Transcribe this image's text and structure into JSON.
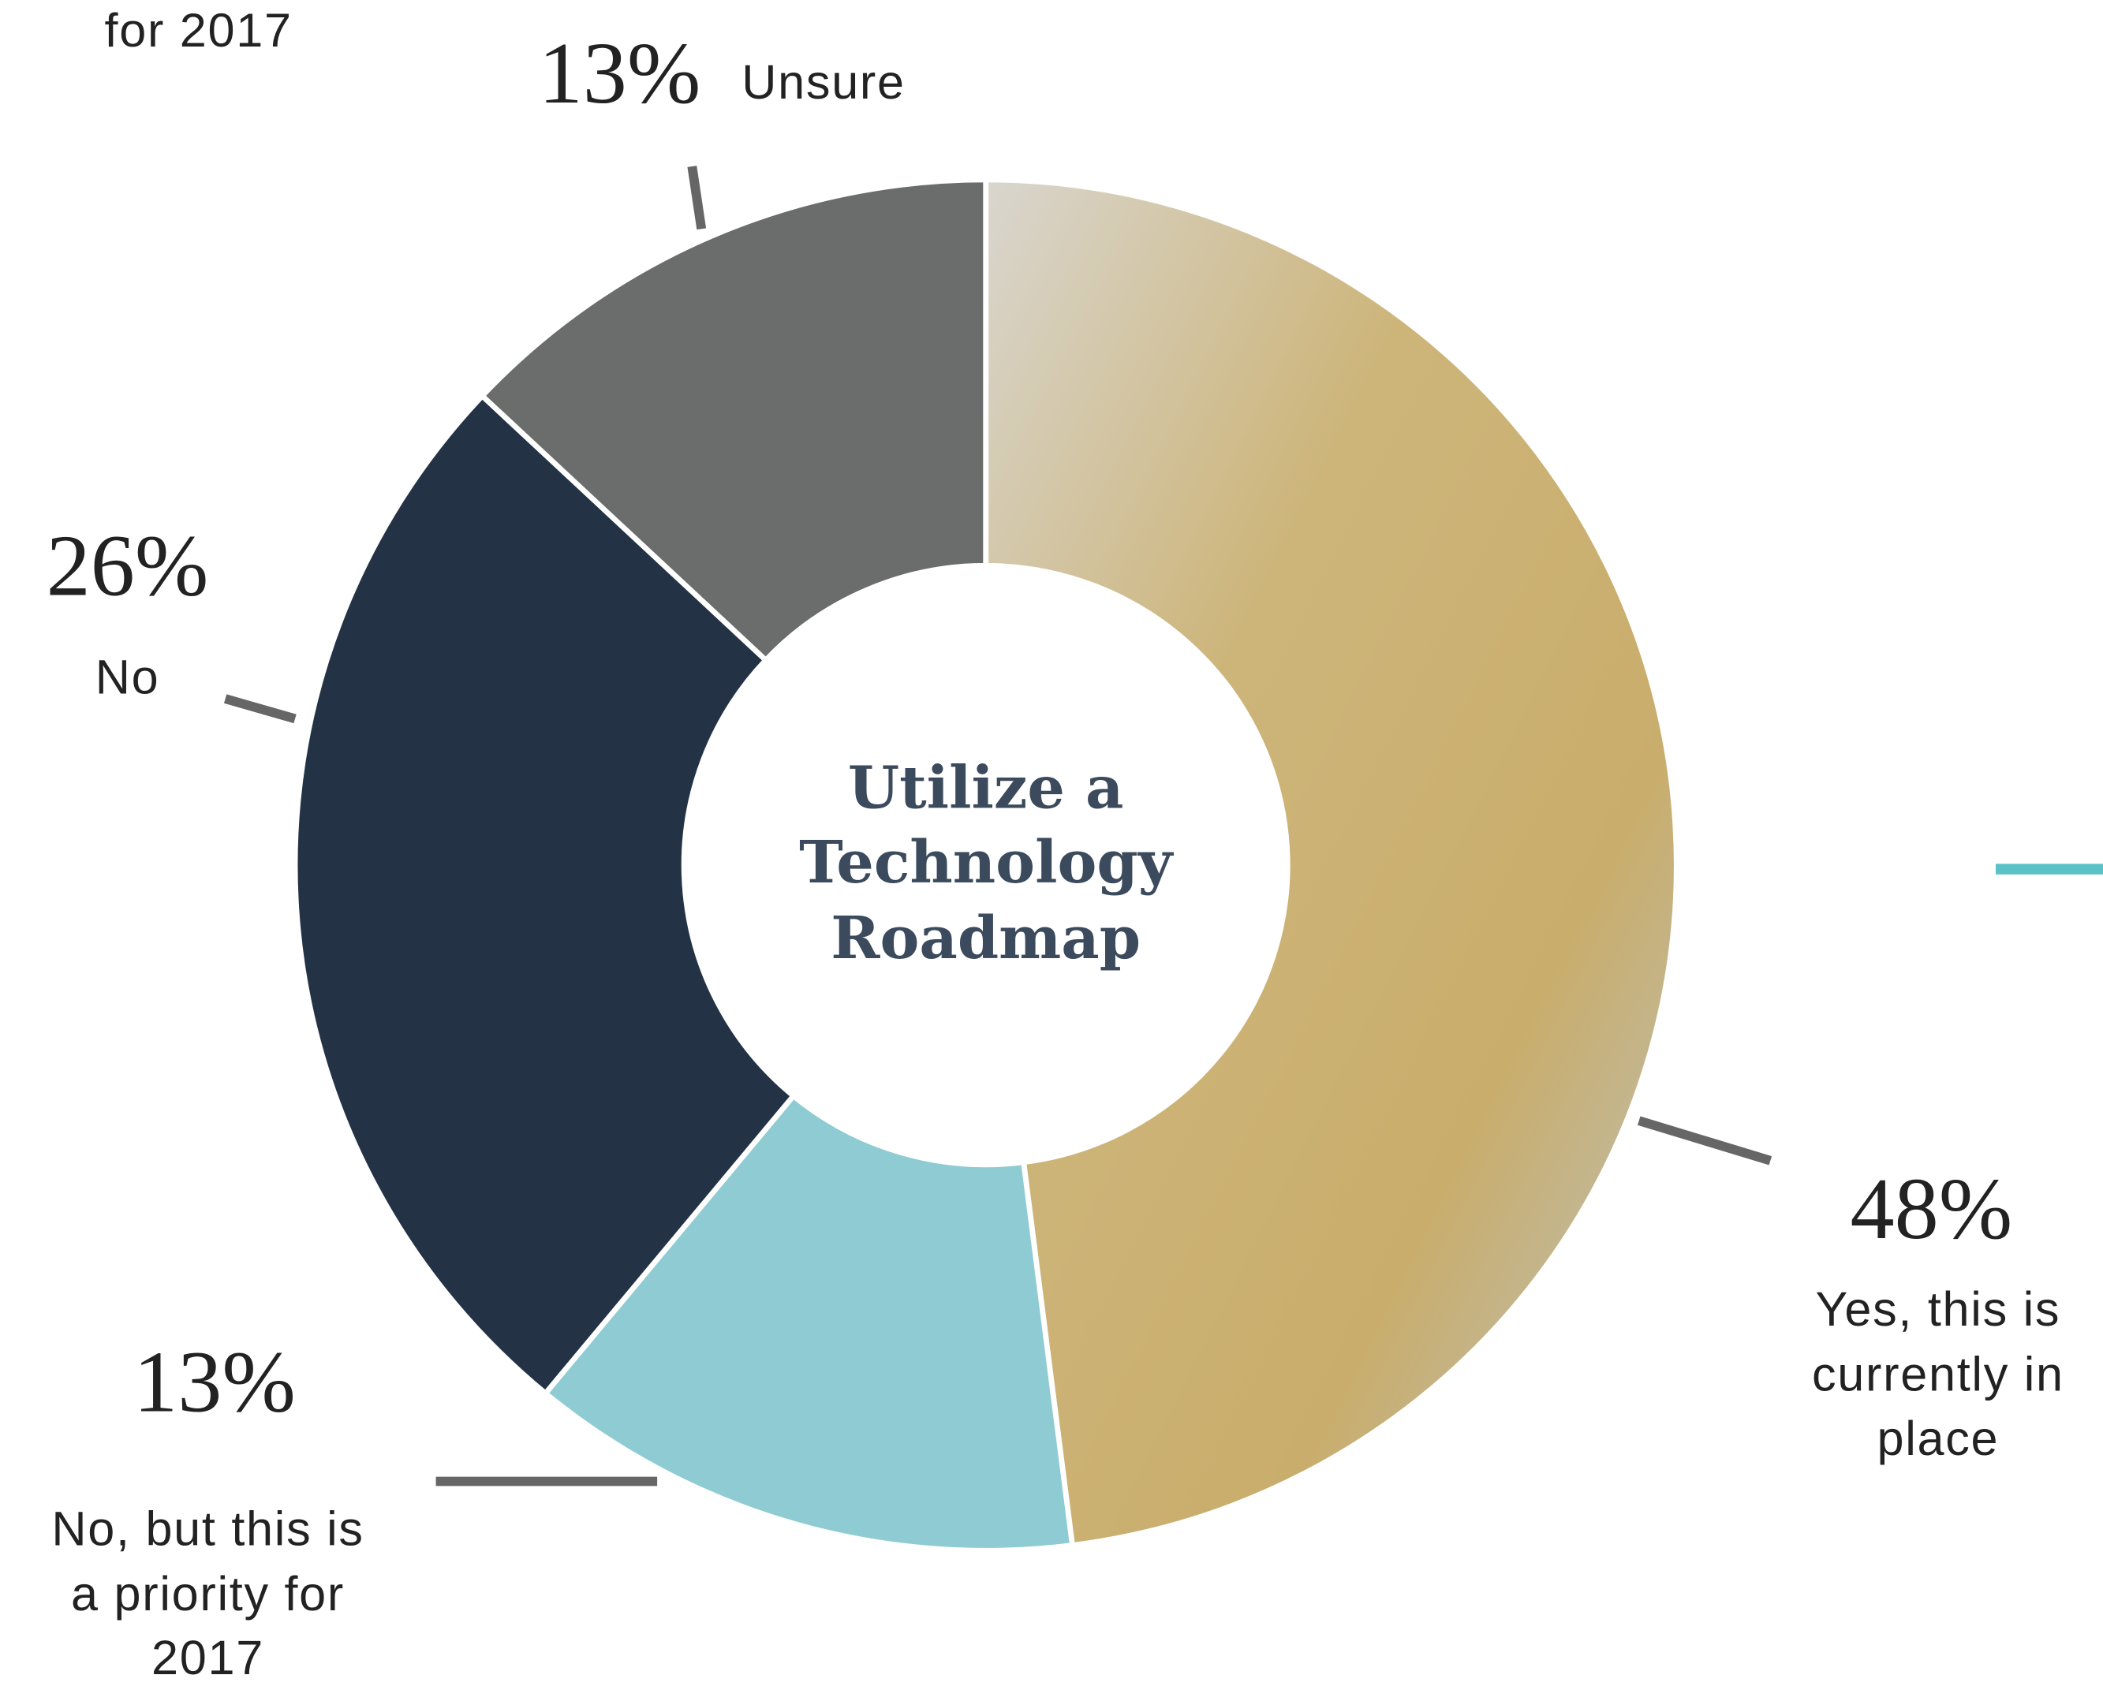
{
  "chart_data": {
    "type": "donut",
    "title": "Utilize a Technology Roadmap",
    "clipped_text": "for 2017",
    "categories": [
      "Yes, this is currently in place",
      "No, but this is a priority for 2017",
      "No",
      "Unsure"
    ],
    "values": [
      48,
      13,
      26,
      13
    ],
    "value_labels": [
      "48%",
      "13%",
      "26%",
      "13%"
    ],
    "colors": [
      "#c8b27a",
      "#8ecbd2",
      "#233345",
      "#6b6d6d"
    ]
  }
}
